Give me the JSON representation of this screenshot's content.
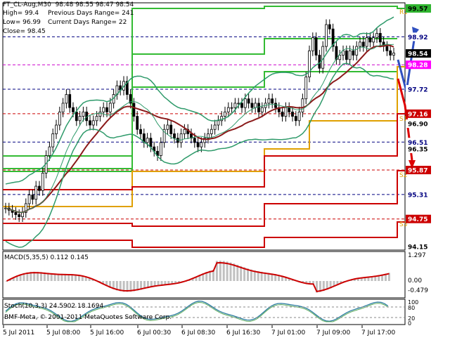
{
  "header": {
    "line1": "FT_CL-Aug,M30  98.48 98.55 98.47 98.54",
    "high": "High= 99.4",
    "low": "Low= 96.99",
    "close": "Close= 98.45",
    "prev_range": "Previous Days Range= 241",
    "curr_range": "Current Days Range= 22"
  },
  "price_labels": [
    {
      "text": "99.57",
      "bg": "#2fb52f",
      "fg": "#000000"
    },
    {
      "text": "98.92",
      "bg": "#ffffff",
      "fg": "#000080"
    },
    {
      "text": "98.54",
      "bg": "#000000",
      "fg": "#ffffff"
    },
    {
      "text": "98.28",
      "bg": "#ff00ff",
      "fg": "#ffffff"
    },
    {
      "text": "97.72",
      "bg": "#ffffff",
      "fg": "#000080"
    },
    {
      "text": "97.16",
      "bg": "#cc0000",
      "fg": "#ffffff"
    },
    {
      "text": "96.90",
      "bg": "#ffffff",
      "fg": "#000000"
    },
    {
      "text": "96.51",
      "bg": "#ffffff",
      "fg": "#000080"
    },
    {
      "text": "96.35",
      "bg": "#ffffff",
      "fg": "#000000"
    },
    {
      "text": "95.87",
      "bg": "#cc0000",
      "fg": "#ffffff"
    },
    {
      "text": "95.31",
      "bg": "#ffffff",
      "fg": "#000080"
    },
    {
      "text": "94.75",
      "bg": "#cc0000",
      "fg": "#ffffff"
    },
    {
      "text": "94.15",
      "bg": "#ffffff",
      "fg": "#000000"
    }
  ],
  "level_tags": [
    "R1",
    "S1",
    "S2",
    "S3"
  ],
  "macd": {
    "title": "MACD(5,35,5) 0.112 0.145",
    "scale": [
      "1.297",
      "0.00",
      "-0.479"
    ]
  },
  "stoch": {
    "title": "Stoch(10,3,3) 24.5902 18.1694",
    "scale": [
      "100",
      "80",
      "20",
      "0"
    ]
  },
  "copyright": "BMF-Meta, © 2001-2011 MetaQuotes Software Corp.",
  "time_labels": [
    "5 Jul 2011",
    "5 Jul 08:00",
    "5 Jul 16:00",
    "6 Jul 00:30",
    "6 Jul 08:30",
    "6 Jul 16:30",
    "7 Jul 01:00",
    "7 Jul 09:00",
    "7 Jul 17:00"
  ],
  "colors": {
    "green_line": "#33bb33",
    "red_line": "#cc0000",
    "orange_line": "#e0a000",
    "bollinger": "#2e9a6a",
    "ma": "#8b1a1a",
    "arrow_blue": "#3050c0",
    "arrow_red": "#dd0000",
    "macd_line": "#cc0000",
    "histogram": "#c0c0c0"
  }
}
